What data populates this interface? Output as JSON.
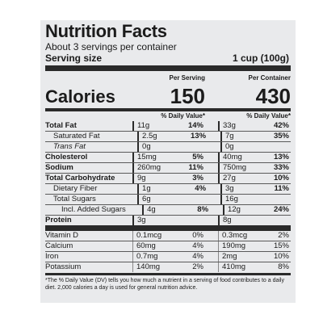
{
  "title": "Nutrition Facts",
  "servings": "About 3 servings per container",
  "serving_size_label": "Serving size",
  "serving_size_value": "1 cup (100g)",
  "per_serving_label": "Per Serving",
  "per_container_label": "Per Container",
  "calories_label": "Calories",
  "calories_serving": "150",
  "calories_container": "430",
  "dv_header": "% Daily Value*",
  "nutrients": [
    {
      "name": "Total Fat",
      "style": "b",
      "s_amt": "11g",
      "s_dv": "14%",
      "c_amt": "33g",
      "c_dv": "42%"
    },
    {
      "name": "Saturated Fat",
      "style": "ind1",
      "s_amt": "2.5g",
      "s_dv": "13%",
      "c_amt": "7g",
      "c_dv": "35%"
    },
    {
      "name": "Trans Fat",
      "style": "ind1 ital",
      "s_amt": "0g",
      "s_dv": "",
      "c_amt": "0g",
      "c_dv": ""
    },
    {
      "name": "Cholesterol",
      "style": "b",
      "s_amt": "15mg",
      "s_dv": "5%",
      "c_amt": "40mg",
      "c_dv": "13%"
    },
    {
      "name": "Sodium",
      "style": "b",
      "s_amt": "260mg",
      "s_dv": "11%",
      "c_amt": "750mg",
      "c_dv": "33%"
    },
    {
      "name": "Total Carbohydrate",
      "style": "b",
      "s_amt": "9g",
      "s_dv": "3%",
      "c_amt": "27g",
      "c_dv": "10%"
    },
    {
      "name": "Dietary Fiber",
      "style": "ind1",
      "s_amt": "1g",
      "s_dv": "4%",
      "c_amt": "3g",
      "c_dv": "11%"
    },
    {
      "name": "Total Sugars",
      "style": "ind1",
      "s_amt": "6g",
      "s_dv": "",
      "c_amt": "16g",
      "c_dv": ""
    },
    {
      "name": "Incl. Added Sugars",
      "style": "ind2",
      "s_amt": "4g",
      "s_dv": "8%",
      "c_amt": "12g",
      "c_dv": "24%"
    },
    {
      "name": "Protein",
      "style": "b",
      "s_amt": "3g",
      "s_dv": "",
      "c_amt": "8g",
      "c_dv": ""
    }
  ],
  "vitamins": [
    {
      "name": "Vitamin D",
      "s_amt": "0.1mcg",
      "s_dv": "0%",
      "c_amt": "0.3mcg",
      "c_dv": "2%"
    },
    {
      "name": "Calcium",
      "s_amt": "60mg",
      "s_dv": "4%",
      "c_amt": "190mg",
      "c_dv": "15%"
    },
    {
      "name": "Iron",
      "s_amt": "0.7mg",
      "s_dv": "4%",
      "c_amt": "2mg",
      "c_dv": "10%"
    },
    {
      "name": "Potassium",
      "s_amt": "140mg",
      "s_dv": "2%",
      "c_amt": "410mg",
      "c_dv": "8%"
    }
  ],
  "footnote": "*The % Daily Value (DV) tells you how much a nutrient in a serving of food contributes to a daily diet. 2,000 calories a day is used for general nutrition advice."
}
